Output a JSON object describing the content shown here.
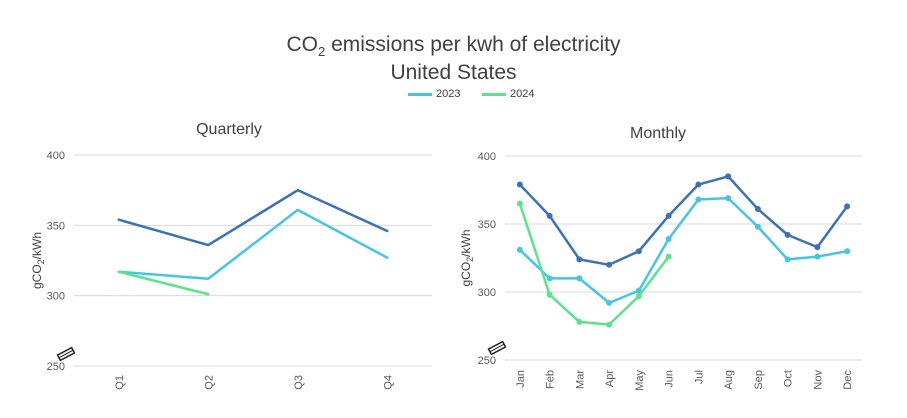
{
  "title": {
    "prefix": "CO",
    "sub": "2",
    "suffix": " emissions per kwh of electricity",
    "line2": "United States"
  },
  "legend": [
    {
      "label": "2023",
      "color": "#45c4e8"
    },
    {
      "label": "2024",
      "color": "#5be38a"
    }
  ],
  "chart_data": [
    {
      "type": "line",
      "title": "Quarterly",
      "ylabel": "gCO2/kWh",
      "ylim": [
        250,
        400
      ],
      "yticks": [
        250,
        300,
        350,
        400
      ],
      "grid": true,
      "axis_break": true,
      "categories": [
        "Q1",
        "Q2",
        "Q3",
        "Q4"
      ],
      "series": [
        {
          "color": "#3a72b8",
          "markers": false,
          "values": [
            354,
            336,
            375,
            346
          ]
        },
        {
          "name": "2023",
          "color": "#45c4e8",
          "markers": false,
          "values": [
            317,
            312,
            361,
            327
          ]
        },
        {
          "name": "2024",
          "color": "#5be38a",
          "markers": false,
          "values": [
            317,
            301,
            null,
            null
          ]
        }
      ]
    },
    {
      "type": "line",
      "title": "Monthly",
      "ylabel": "gCO2/kWh",
      "ylim": [
        250,
        400
      ],
      "yticks": [
        250,
        300,
        350,
        400
      ],
      "grid": true,
      "axis_break": true,
      "categories": [
        "Jan",
        "Feb",
        "Mar",
        "Apr",
        "May",
        "Jun",
        "Jul",
        "Aug",
        "Sep",
        "Oct",
        "Nov",
        "Dec"
      ],
      "series": [
        {
          "color": "#3a72b8",
          "markers": true,
          "values": [
            379,
            356,
            324,
            320,
            330,
            356,
            379,
            385,
            361,
            342,
            333,
            363
          ]
        },
        {
          "name": "2023",
          "color": "#45c4e8",
          "markers": true,
          "values": [
            331,
            310,
            310,
            292,
            301,
            339,
            368,
            369,
            348,
            324,
            326,
            330
          ]
        },
        {
          "name": "2024",
          "color": "#5be38a",
          "markers": true,
          "values": [
            365,
            298,
            278,
            276,
            297,
            326,
            null,
            null,
            null,
            null,
            null,
            null
          ]
        }
      ]
    }
  ]
}
